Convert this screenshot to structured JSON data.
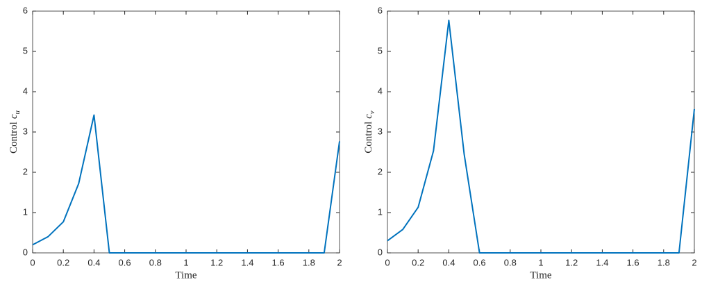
{
  "chart_data": [
    {
      "type": "line",
      "xlabel": "Time",
      "ylabel": "Control",
      "ylabel_symbol": "c",
      "ylabel_subscript": "u",
      "x": [
        0,
        0.1,
        0.2,
        0.3,
        0.4,
        0.5,
        0.6,
        0.7,
        0.8,
        0.9,
        1.0,
        1.1,
        1.2,
        1.3,
        1.4,
        1.5,
        1.6,
        1.7,
        1.8,
        1.9,
        2.0
      ],
      "values": [
        0.2,
        0.4,
        0.77,
        1.72,
        3.42,
        0,
        0,
        0,
        0,
        0,
        0,
        0,
        0,
        0,
        0,
        0,
        0,
        0,
        0,
        0,
        2.77
      ],
      "color": "#0072bd",
      "xlim": [
        0,
        2
      ],
      "xticks": [
        0,
        0.2,
        0.4,
        0.6,
        0.8,
        1,
        1.2,
        1.4,
        1.6,
        1.8,
        2
      ],
      "ylim": [
        0,
        6
      ],
      "yticks": [
        0,
        1,
        2,
        3,
        4,
        5,
        6
      ]
    },
    {
      "type": "line",
      "xlabel": "Time",
      "ylabel": "Control",
      "ylabel_symbol": "c",
      "ylabel_subscript": "v",
      "x": [
        0,
        0.1,
        0.2,
        0.3,
        0.4,
        0.5,
        0.6,
        0.7,
        0.8,
        0.9,
        1.0,
        1.1,
        1.2,
        1.3,
        1.4,
        1.5,
        1.6,
        1.7,
        1.8,
        1.9,
        2.0
      ],
      "values": [
        0.3,
        0.58,
        1.13,
        2.53,
        5.77,
        2.45,
        0,
        0,
        0,
        0,
        0,
        0,
        0,
        0,
        0,
        0,
        0,
        0,
        0,
        0,
        3.57
      ],
      "color": "#0072bd",
      "xlim": [
        0,
        2
      ],
      "xticks": [
        0,
        0.2,
        0.4,
        0.6,
        0.8,
        1,
        1.2,
        1.4,
        1.6,
        1.8,
        2
      ],
      "ylim": [
        0,
        6
      ],
      "yticks": [
        0,
        1,
        2,
        3,
        4,
        5,
        6
      ]
    }
  ]
}
